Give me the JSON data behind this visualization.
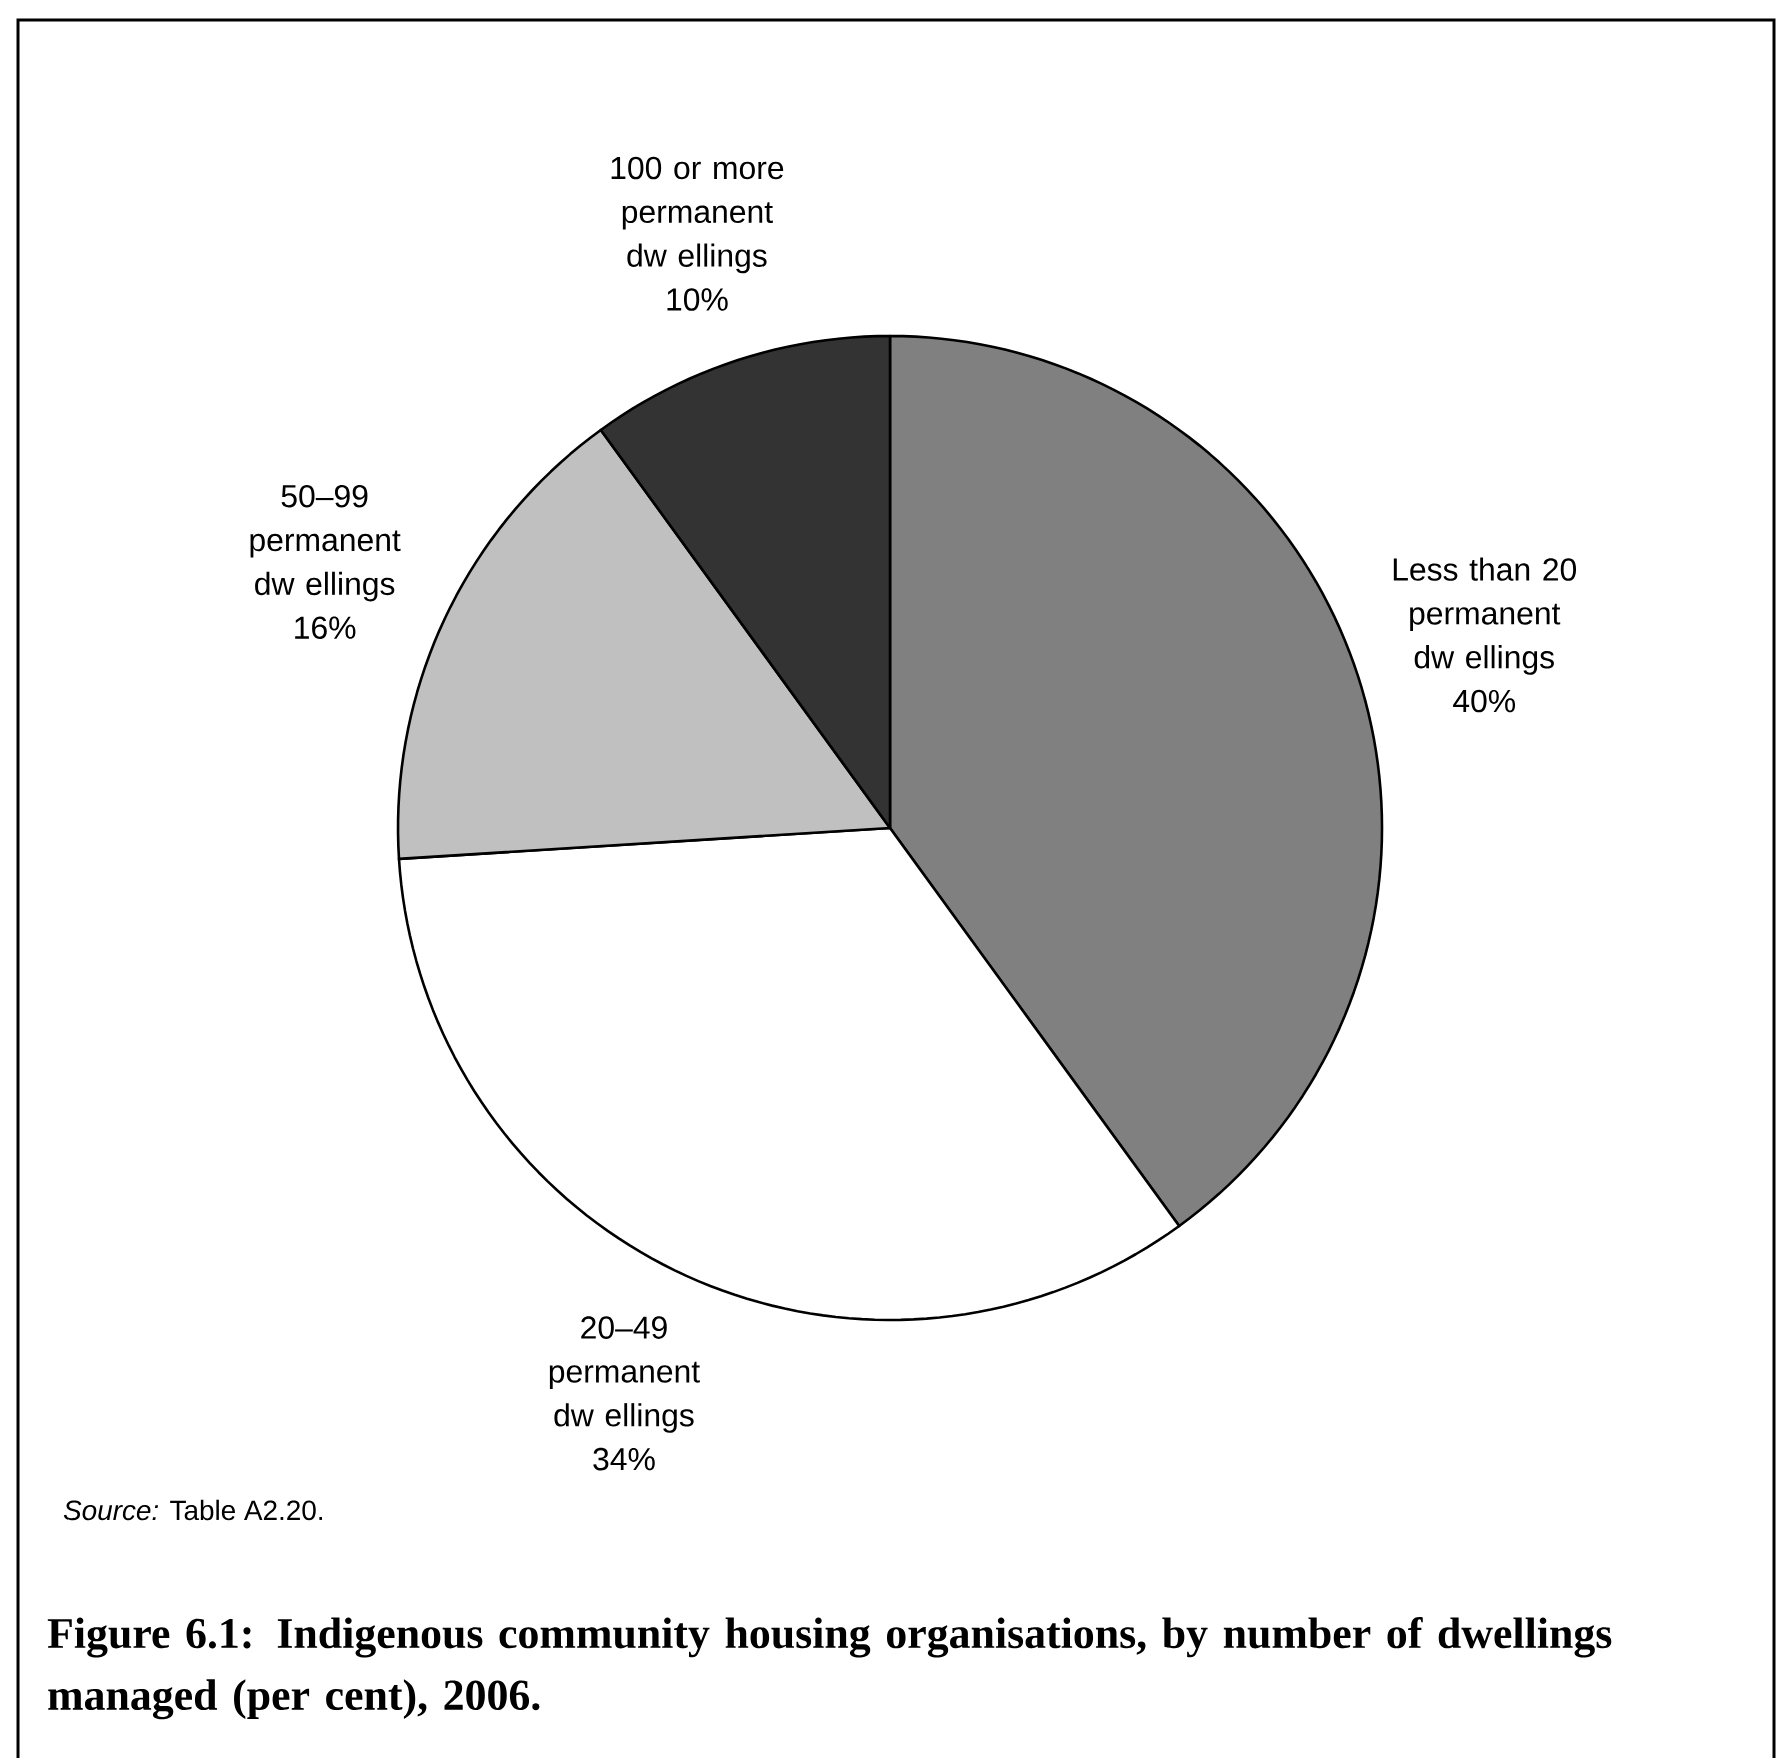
{
  "chart_data": {
    "type": "pie",
    "title": "Figure 6.1: Indigenous community housing organisations, by number of dwellings managed (per cent), 2006.",
    "categories": [
      "Less than 20 permanent dw ellings",
      "20–49 permanent dw ellings",
      "50–99 permanent dw ellings",
      "100 or more permanent dw ellings"
    ],
    "values": [
      40,
      34,
      16,
      10
    ],
    "value_labels": [
      "40%",
      "34%",
      "16%",
      "10%"
    ],
    "colors": [
      "#808080",
      "#ffffff",
      "#c0c0c0",
      "#333333"
    ],
    "annotations": [
      "*Source:* Table A2.20."
    ]
  }
}
